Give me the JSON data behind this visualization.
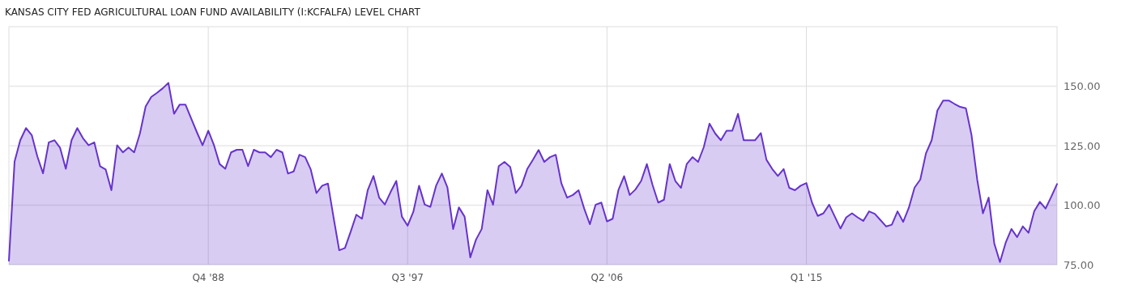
{
  "chart_data": {
    "type": "area",
    "title": "KANSAS CITY FED AGRICULTURAL LOAN FUND AVAILABILITY (I:KCFALFA) LEVEL CHART",
    "x": [
      "1980-01",
      "1980-04",
      "1980-07",
      "1980-10",
      "1981-01",
      "1981-04",
      "1981-07",
      "1981-10",
      "1982-01",
      "1982-04",
      "1982-07",
      "1982-10",
      "1983-01",
      "1983-04",
      "1983-07",
      "1983-10",
      "1984-01",
      "1984-04",
      "1984-07",
      "1984-10",
      "1985-01",
      "1985-04",
      "1985-07",
      "1985-10",
      "1986-01",
      "1986-04",
      "1986-07",
      "1986-10",
      "1987-01",
      "1987-04",
      "1987-07",
      "1987-10",
      "1988-01",
      "1988-04",
      "1988-07",
      "1988-10",
      "1989-01",
      "1989-04",
      "1989-07",
      "1989-10",
      "1990-01",
      "1990-04",
      "1990-07",
      "1990-10",
      "1991-01",
      "1991-04",
      "1991-07",
      "1991-10",
      "1992-01",
      "1992-04",
      "1992-07",
      "1992-10",
      "1993-01",
      "1993-04",
      "1993-07",
      "1993-10",
      "1994-01",
      "1994-04",
      "1994-07",
      "1994-10",
      "1995-01",
      "1995-04",
      "1995-07",
      "1995-10",
      "1996-01",
      "1996-04",
      "1996-07",
      "1996-10",
      "1997-01",
      "1997-04",
      "1997-07",
      "1997-10",
      "1998-01",
      "1998-04",
      "1998-07",
      "1998-10",
      "1999-01",
      "1999-04",
      "1999-07",
      "1999-10",
      "2000-01",
      "2000-04",
      "2000-07",
      "2000-10",
      "2001-01",
      "2001-04",
      "2001-07",
      "2001-10",
      "2002-01",
      "2002-04",
      "2002-07",
      "2002-10",
      "2003-01",
      "2003-04",
      "2003-07",
      "2003-10",
      "2004-01",
      "2004-04",
      "2004-07",
      "2004-10",
      "2005-01",
      "2005-04",
      "2005-07",
      "2005-10",
      "2006-01",
      "2006-04",
      "2006-07",
      "2006-10",
      "2007-01",
      "2007-04",
      "2007-07",
      "2007-10",
      "2008-01",
      "2008-04",
      "2008-07",
      "2008-10",
      "2009-01",
      "2009-04",
      "2009-07",
      "2009-10",
      "2010-01",
      "2010-04",
      "2010-07",
      "2010-10",
      "2011-01",
      "2011-04",
      "2011-07",
      "2011-10",
      "2012-01",
      "2012-04",
      "2012-07",
      "2012-10",
      "2013-01",
      "2013-04",
      "2013-07",
      "2013-10",
      "2014-01",
      "2014-04",
      "2014-07",
      "2014-10",
      "2015-01",
      "2015-04",
      "2015-07",
      "2015-10",
      "2016-01",
      "2016-04",
      "2016-07",
      "2016-10",
      "2017-01",
      "2017-04",
      "2017-07",
      "2017-10",
      "2018-01",
      "2018-04",
      "2018-07",
      "2018-10",
      "2019-01",
      "2019-04",
      "2019-07",
      "2019-10",
      "2020-01",
      "2020-04",
      "2020-07",
      "2020-10",
      "2021-01",
      "2021-04",
      "2021-07",
      "2021-10",
      "2022-01",
      "2022-04",
      "2022-07",
      "2022-10",
      "2023-01",
      "2023-04",
      "2023-07",
      "2023-10",
      "2024-01",
      "2024-04",
      "2024-07",
      "2024-10",
      "2025-01",
      "2025-04",
      "2025-07",
      "2025-10",
      "2026-01"
    ],
    "series": [
      {
        "color": "#6633cc",
        "values": [
          76.7,
          118.4,
          127.3,
          132.4,
          129.5,
          120.5,
          113.4,
          126.4,
          127.3,
          124.1,
          115.3,
          127.3,
          132.4,
          128.2,
          125.2,
          126.4,
          116.4,
          115.0,
          106.3,
          125.2,
          122.2,
          124.2,
          122.2,
          130.1,
          141.5,
          145.5,
          147.2,
          149.1,
          151.4,
          138.4,
          142.3,
          142.3,
          136.4,
          130.7,
          125.2,
          131.3,
          125.2,
          117.3,
          115.3,
          122.2,
          123.3,
          123.3,
          116.4,
          123.3,
          122.2,
          122.2,
          120.2,
          123.3,
          122.2,
          113.3,
          114.2,
          121.2,
          120.2,
          115.0,
          105.1,
          108.2,
          109.1,
          94.9,
          81.1,
          82.0,
          88.9,
          96.0,
          94.3,
          106.3,
          112.3,
          103.2,
          100.3,
          105.5,
          110.2,
          95.2,
          91.4,
          97.2,
          108.2,
          100.3,
          99.3,
          108.2,
          113.3,
          107.4,
          90.0,
          99.1,
          95.2,
          78.1,
          85.5,
          90.0,
          106.3,
          100.2,
          116.4,
          118.2,
          116.1,
          105.1,
          108.2,
          115.2,
          119.1,
          123.2,
          118.2,
          120.2,
          121.2,
          109.1,
          103.2,
          104.3,
          106.3,
          98.6,
          92.0,
          100.2,
          101.1,
          93.2,
          94.3,
          106.3,
          112.2,
          104.3,
          106.6,
          110.2,
          117.3,
          108.5,
          101.1,
          102.3,
          117.3,
          110.2,
          107.3,
          117.3,
          120.2,
          118.2,
          124.4,
          134.3,
          130.1,
          127.3,
          131.3,
          131.3,
          138.4,
          127.3,
          127.3,
          127.3,
          130.3,
          119.1,
          115.3,
          112.3,
          115.2,
          107.3,
          106.3,
          108.2,
          109.3,
          101.1,
          95.5,
          96.6,
          100.2,
          95.2,
          90.2,
          94.9,
          96.6,
          94.9,
          93.4,
          97.4,
          96.4,
          93.8,
          91.1,
          91.8,
          97.4,
          93.0,
          98.9,
          107.4,
          110.8,
          121.8,
          127.3,
          139.8,
          144.0,
          144.0,
          142.6,
          141.3,
          140.7,
          129.5,
          110.8,
          96.6,
          103.2,
          83.9,
          76.1,
          84.3,
          90.0,
          86.6,
          91.1,
          88.4,
          97.5,
          101.4,
          98.6,
          103.6,
          108.9
        ]
      }
    ],
    "xlim": [
      "1980-01",
      "2026-01"
    ],
    "xticks": [
      {
        "value": "1988-10",
        "label": "Q4 '88"
      },
      {
        "value": "1997-07",
        "label": "Q3 '97"
      },
      {
        "value": "2006-04",
        "label": "Q2 '06"
      },
      {
        "value": "2015-01",
        "label": "Q1 '15"
      }
    ],
    "ylim": [
      75,
      175
    ],
    "yticks": [
      {
        "value": 75,
        "label": "75.00"
      },
      {
        "value": 100,
        "label": "100.00"
      },
      {
        "value": 125,
        "label": "125.00"
      },
      {
        "value": 150,
        "label": "150.00"
      }
    ],
    "grid": true
  }
}
